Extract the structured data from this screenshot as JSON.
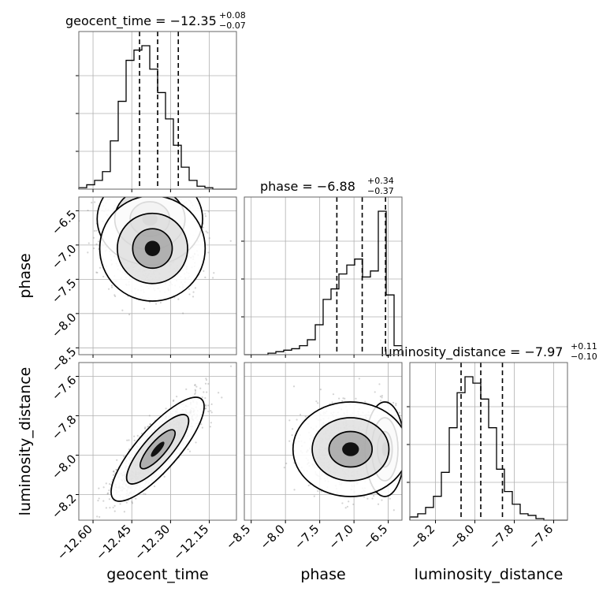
{
  "chart_data": {
    "type": "corner",
    "parameters": [
      "geocent_time",
      "phase",
      "luminosity_distance"
    ],
    "titles": [
      {
        "parameter": "geocent_time",
        "prefix": "geocent_time = −12.35",
        "plus": "+0.08",
        "minus": "−0.07"
      },
      {
        "parameter": "phase",
        "prefix": "phase = −6.88",
        "plus": "+0.34",
        "minus": "−0.37"
      },
      {
        "parameter": "luminosity_distance",
        "prefix": "luminosity_distance = −7.97",
        "plus": "+0.11",
        "minus": "−0.10"
      }
    ],
    "axes": {
      "geocent_time": {
        "range": [
          -12.655,
          -12.045
        ],
        "ticks": [
          -12.6,
          -12.45,
          -12.3,
          -12.15
        ],
        "tick_labels": [
          "−12.60",
          "−12.45",
          "−12.30",
          "−12.15"
        ]
      },
      "phase": {
        "range": [
          -8.6,
          -6.3
        ],
        "ticks": [
          -8.5,
          -8.0,
          -7.5,
          -7.0,
          -6.5
        ],
        "tick_labels": [
          "−8.5",
          "−8.0",
          "−7.5",
          "−7.0",
          "−6.5"
        ]
      },
      "luminosity_distance": {
        "range": [
          -8.33,
          -7.53
        ],
        "ticks": [
          -8.2,
          -8.0,
          -7.8,
          -7.6
        ],
        "tick_labels": [
          "−8.2",
          "−8.0",
          "−7.8",
          "−7.6"
        ]
      }
    },
    "histograms": [
      {
        "parameter": "geocent_time",
        "bin_edges_range": [
          -12.655,
          -12.045
        ],
        "counts": [
          1,
          3,
          6,
          12,
          33,
          60,
          88,
          95,
          98,
          82,
          66,
          48,
          30,
          15,
          6,
          2,
          1,
          0,
          0,
          0
        ],
        "quantiles": [
          -12.42,
          -12.35,
          -12.27
        ]
      },
      {
        "parameter": "phase",
        "bin_edges_range": [
          -8.6,
          -6.3
        ],
        "counts": [
          0,
          0,
          0,
          1,
          2,
          3,
          4,
          6,
          10,
          20,
          37,
          44,
          54,
          60,
          64,
          52,
          56,
          96,
          40,
          6
        ],
        "quantiles": [
          -7.25,
          -6.88,
          -6.54
        ]
      },
      {
        "parameter": "luminosity_distance",
        "bin_edges_range": [
          -8.33,
          -7.53
        ],
        "counts": [
          2,
          4,
          8,
          15,
          30,
          58,
          80,
          90,
          86,
          76,
          58,
          32,
          18,
          10,
          4,
          3,
          1,
          0,
          0,
          0
        ],
        "quantiles": [
          -8.07,
          -7.97,
          -7.86
        ]
      }
    ],
    "scatter_2d": [
      {
        "x": "geocent_time",
        "y": "phase",
        "blobs": [
          {
            "cx": -12.38,
            "cy": -6.62,
            "sx": 0.085,
            "sy": 0.28,
            "rho": 0,
            "weight": 0.45
          },
          {
            "cx": -12.37,
            "cy": -7.05,
            "sx": 0.085,
            "sy": 0.32,
            "rho": 0,
            "weight": 0.55
          }
        ]
      },
      {
        "x": "geocent_time",
        "y": "luminosity_distance",
        "blobs": [
          {
            "cx": -12.35,
            "cy": -7.97,
            "sx": 0.075,
            "sy": 0.11,
            "rho": 0.82,
            "weight": 1
          }
        ]
      },
      {
        "x": "phase",
        "y": "luminosity_distance",
        "blobs": [
          {
            "cx": -6.55,
            "cy": -7.97,
            "sx": 0.12,
            "sy": 0.1,
            "rho": 0,
            "weight": 0.4
          },
          {
            "cx": -7.05,
            "cy": -7.97,
            "sx": 0.35,
            "sy": 0.1,
            "rho": 0,
            "weight": 0.6
          }
        ]
      }
    ],
    "grid": true,
    "colors": {
      "hist": "#000000",
      "points": "#808080",
      "contour": "#000000",
      "quantile": "#000000"
    }
  }
}
